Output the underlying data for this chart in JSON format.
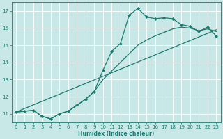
{
  "xlabel": "Humidex (Indice chaleur)",
  "bg_color": "#c8e8e8",
  "grid_color": "#ffffff",
  "line_color": "#1a7a6e",
  "xlim": [
    -0.5,
    23.5
  ],
  "ylim": [
    10.5,
    17.5
  ],
  "yticks": [
    11,
    12,
    13,
    14,
    15,
    16,
    17
  ],
  "xticks": [
    0,
    1,
    2,
    3,
    4,
    5,
    6,
    7,
    8,
    9,
    10,
    11,
    12,
    13,
    14,
    15,
    16,
    17,
    18,
    19,
    20,
    21,
    22,
    23
  ],
  "series1_x": [
    0,
    1,
    2,
    3,
    4,
    5,
    6,
    7,
    8,
    9,
    10,
    11,
    12,
    13,
    14,
    15,
    16,
    17,
    18,
    19,
    20,
    21,
    22,
    23
  ],
  "series1_y": [
    11.1,
    11.15,
    11.2,
    10.85,
    10.7,
    11.0,
    11.15,
    11.5,
    11.85,
    12.3,
    13.55,
    14.65,
    15.1,
    16.75,
    17.15,
    16.65,
    16.55,
    16.6,
    16.55,
    16.2,
    16.1,
    15.8,
    16.05,
    15.55
  ],
  "series2_x": [
    0,
    1,
    2,
    3,
    4,
    5,
    6,
    7,
    8,
    9,
    10,
    11,
    12,
    13,
    14,
    15,
    16,
    17,
    18,
    19,
    20,
    21,
    22,
    23
  ],
  "series2_y": [
    11.1,
    11.15,
    11.2,
    10.85,
    10.7,
    11.0,
    11.15,
    11.5,
    11.85,
    12.3,
    13.0,
    13.5,
    14.0,
    14.5,
    15.0,
    15.3,
    15.55,
    15.75,
    15.95,
    16.05,
    16.0,
    15.85,
    15.95,
    15.8
  ],
  "series3_x": [
    0,
    23
  ],
  "series3_y": [
    11.1,
    15.9
  ],
  "marker": "D",
  "markersize": 2.2,
  "linewidth": 0.9,
  "xlabel_fontsize": 5.5,
  "tick_fontsize": 5.0
}
